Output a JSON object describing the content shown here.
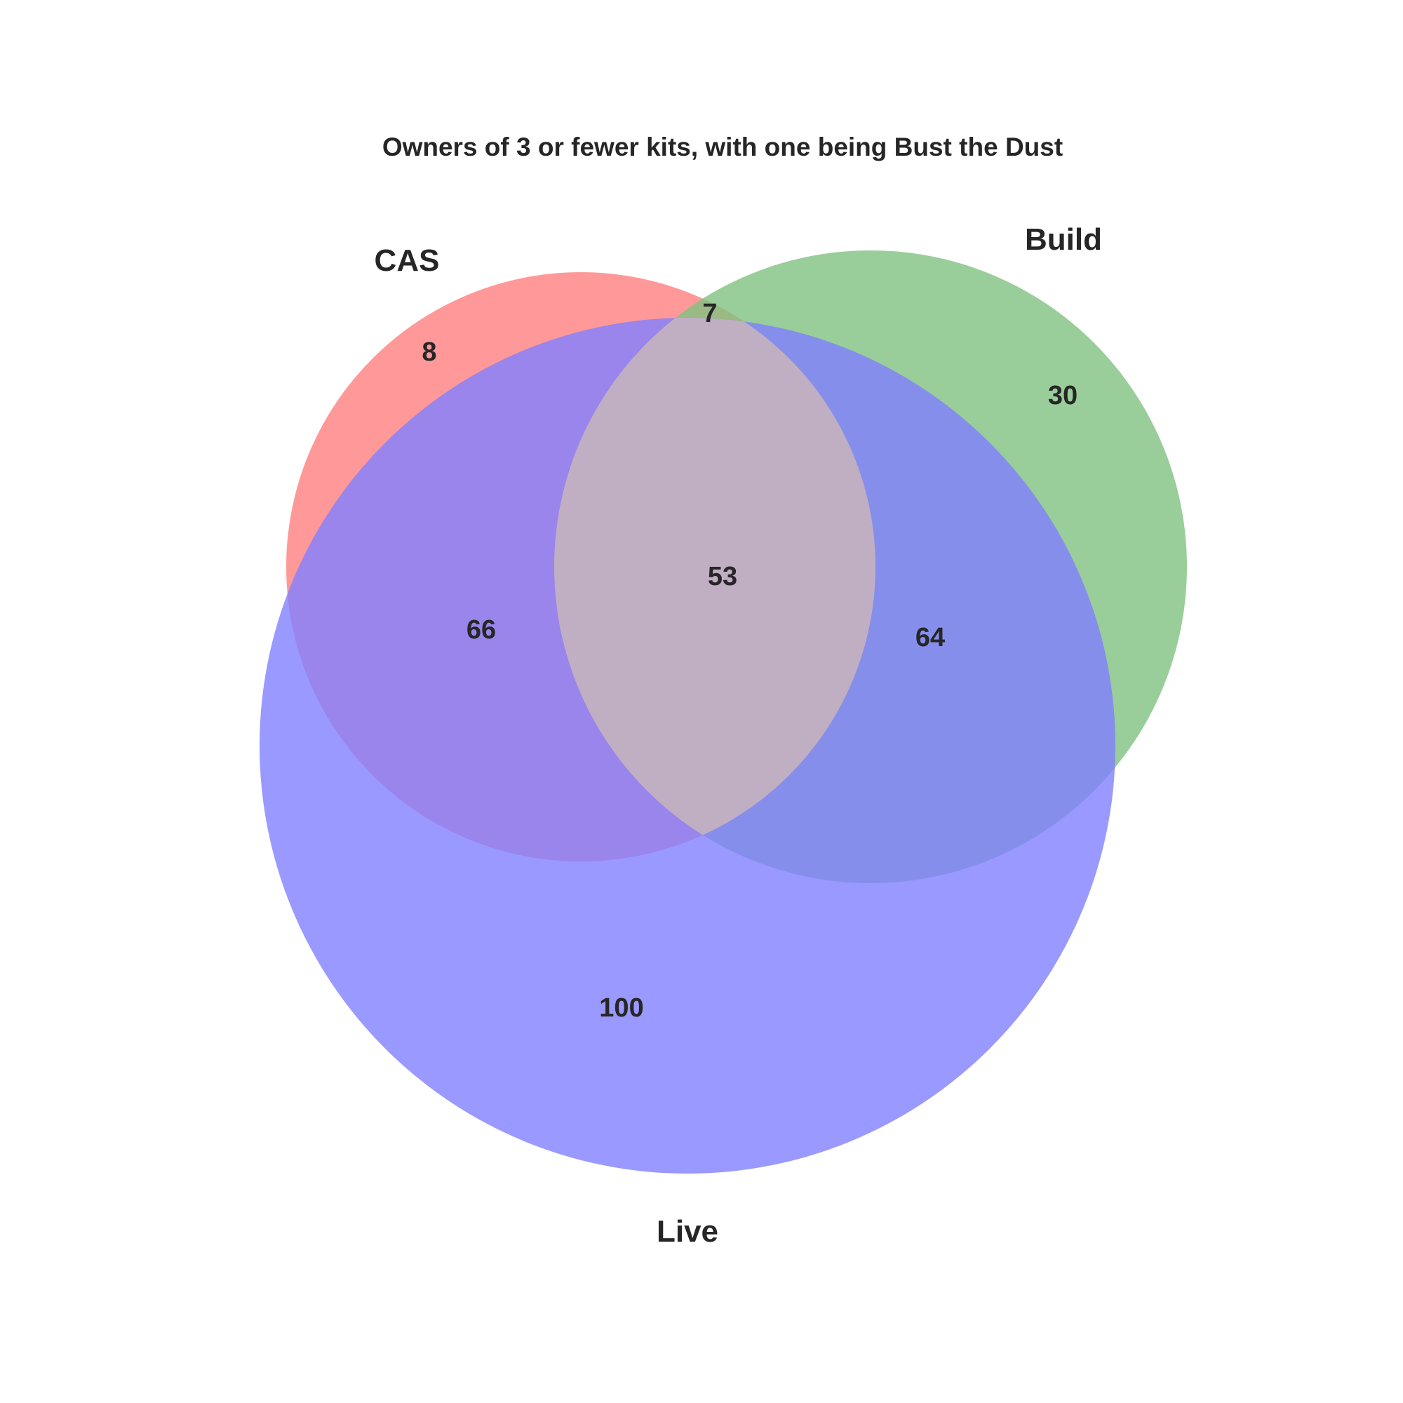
{
  "title": "Owners of 3 or fewer kits, with one being Bust the Dust",
  "sets": [
    {
      "key": "cas",
      "label": "CAS",
      "color": "#ff8080"
    },
    {
      "key": "build",
      "label": "Build",
      "color": "#80c080"
    },
    {
      "key": "live",
      "label": "Live",
      "color": "#8080ff"
    }
  ],
  "regions": {
    "cas_only": "8",
    "build_only": "30",
    "live_only": "100",
    "cas_build": "7",
    "cas_live": "66",
    "build_live": "64",
    "cas_build_live": "53"
  },
  "chart_data": {
    "type": "venn3",
    "title": "Owners of 3 or fewer kits, with one being Bust the Dust",
    "sets": [
      "CAS",
      "Build",
      "Live"
    ],
    "subsets": {
      "CAS": 8,
      "Build": 30,
      "Live": 100,
      "CAS&Build": 7,
      "CAS&Live": 66,
      "Build&Live": 64,
      "CAS&Build&Live": 53
    }
  }
}
